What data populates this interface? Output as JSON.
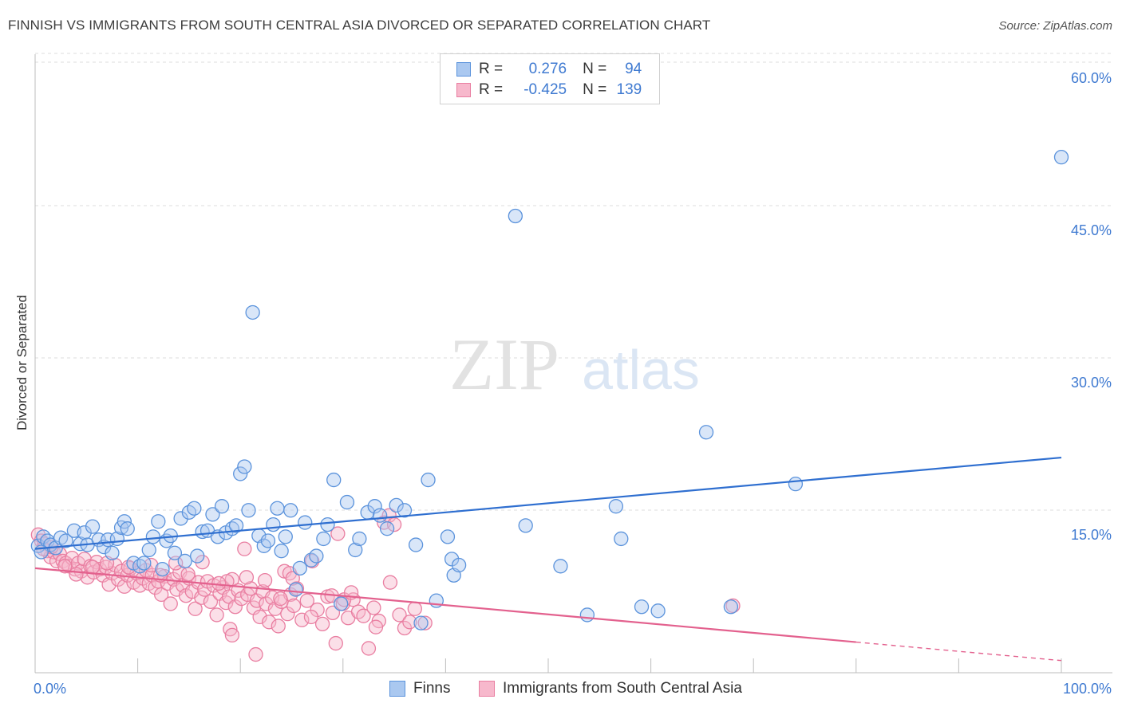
{
  "header": {
    "title": "FINNISH VS IMMIGRANTS FROM SOUTH CENTRAL ASIA DIVORCED OR SEPARATED CORRELATION CHART",
    "source": "Source: ZipAtlas.com"
  },
  "legend_top": {
    "rows": [
      {
        "r_label": "R =",
        "r_value": "0.276",
        "n_label": "N =",
        "n_value": "94"
      },
      {
        "r_label": "R =",
        "r_value": "-0.425",
        "n_label": "N =",
        "n_value": "139"
      }
    ]
  },
  "watermark": {
    "zip": "ZIP",
    "atlas": "atlas"
  },
  "colors": {
    "finns_fill": "#aac8f0",
    "finns_stroke": "#5b93dc",
    "finns_line": "#2f6fd0",
    "imm_fill": "#f7b8cc",
    "imm_stroke": "#e97ea1",
    "imm_line": "#e3618e",
    "tick_text": "#3f7ad1",
    "grid": "#dddddd"
  },
  "chart_data": {
    "type": "scatter",
    "title": "FINNISH VS IMMIGRANTS FROM SOUTH CENTRAL ASIA DIVORCED OR SEPARATED CORRELATION CHART",
    "xlabel": "",
    "ylabel": "Divorced or Separated",
    "xlim": [
      0,
      100
    ],
    "ylim": [
      0,
      60
    ],
    "x_tick_labels": [
      "0.0%",
      "100.0%"
    ],
    "y_ticks": [
      15,
      30,
      45,
      60
    ],
    "y_tick_labels": [
      "15.0%",
      "30.0%",
      "45.0%",
      "60.0%"
    ],
    "grid": true,
    "legend_position": "bottom",
    "series": [
      {
        "name": "Finns",
        "r": 0.276,
        "n": 94,
        "trend": {
          "x0": 0,
          "y0": 12.2,
          "x1": 100,
          "y1": 21.2,
          "dashed_from": null
        },
        "points": [
          [
            0.3,
            12.5
          ],
          [
            0.8,
            13.4
          ],
          [
            1.2,
            13.0
          ],
          [
            1.5,
            12.6
          ],
          [
            2.0,
            12.3
          ],
          [
            2.5,
            13.3
          ],
          [
            3.0,
            13.0
          ],
          [
            3.8,
            14.0
          ],
          [
            4.4,
            12.7
          ],
          [
            4.8,
            13.8
          ],
          [
            5.1,
            12.6
          ],
          [
            5.6,
            14.4
          ],
          [
            6.2,
            13.1
          ],
          [
            6.7,
            12.4
          ],
          [
            7.1,
            13.1
          ],
          [
            7.5,
            11.8
          ],
          [
            8.0,
            13.2
          ],
          [
            8.4,
            14.3
          ],
          [
            8.7,
            14.9
          ],
          [
            9.0,
            14.2
          ],
          [
            9.6,
            10.8
          ],
          [
            10.2,
            10.5
          ],
          [
            10.6,
            10.8
          ],
          [
            11.1,
            12.1
          ],
          [
            11.5,
            13.4
          ],
          [
            12.0,
            14.9
          ],
          [
            12.4,
            10.2
          ],
          [
            12.8,
            13.0
          ],
          [
            13.2,
            13.5
          ],
          [
            13.6,
            11.8
          ],
          [
            14.2,
            15.2
          ],
          [
            14.6,
            11.0
          ],
          [
            15.0,
            15.8
          ],
          [
            15.5,
            16.2
          ],
          [
            15.8,
            11.5
          ],
          [
            16.3,
            13.9
          ],
          [
            16.8,
            14.0
          ],
          [
            17.3,
            15.6
          ],
          [
            17.8,
            13.4
          ],
          [
            18.2,
            16.4
          ],
          [
            18.6,
            13.8
          ],
          [
            19.2,
            14.2
          ],
          [
            19.6,
            14.5
          ],
          [
            20.0,
            19.6
          ],
          [
            20.4,
            20.3
          ],
          [
            20.8,
            16.0
          ],
          [
            21.2,
            35.5
          ],
          [
            21.8,
            13.5
          ],
          [
            22.3,
            12.5
          ],
          [
            22.7,
            13.0
          ],
          [
            23.2,
            14.6
          ],
          [
            23.6,
            16.2
          ],
          [
            24.0,
            12.0
          ],
          [
            24.4,
            13.4
          ],
          [
            24.9,
            16.0
          ],
          [
            25.4,
            8.2
          ],
          [
            25.8,
            10.3
          ],
          [
            26.3,
            14.8
          ],
          [
            26.9,
            11.1
          ],
          [
            27.4,
            11.5
          ],
          [
            28.1,
            13.2
          ],
          [
            28.5,
            14.6
          ],
          [
            29.1,
            19.0
          ],
          [
            29.8,
            6.8
          ],
          [
            30.4,
            16.8
          ],
          [
            31.2,
            12.1
          ],
          [
            31.6,
            13.2
          ],
          [
            32.4,
            15.8
          ],
          [
            33.1,
            16.4
          ],
          [
            33.6,
            15.5
          ],
          [
            34.3,
            14.2
          ],
          [
            35.2,
            16.5
          ],
          [
            36.0,
            16.0
          ],
          [
            37.1,
            12.6
          ],
          [
            37.6,
            4.9
          ],
          [
            38.3,
            19.0
          ],
          [
            39.1,
            7.1
          ],
          [
            40.2,
            13.4
          ],
          [
            40.6,
            11.2
          ],
          [
            40.8,
            9.6
          ],
          [
            41.3,
            10.6
          ],
          [
            46.8,
            45.0
          ],
          [
            47.8,
            14.5
          ],
          [
            51.2,
            10.5
          ],
          [
            53.8,
            5.7
          ],
          [
            56.6,
            16.4
          ],
          [
            57.1,
            13.2
          ],
          [
            59.1,
            6.5
          ],
          [
            60.7,
            6.1
          ],
          [
            65.4,
            23.7
          ],
          [
            67.8,
            6.5
          ],
          [
            74.1,
            18.6
          ],
          [
            100.0,
            50.8
          ],
          [
            0.6,
            11.9
          ]
        ]
      },
      {
        "name": "Immigrants from South Central Asia",
        "r": -0.425,
        "n": 139,
        "trend": {
          "x0": 0,
          "y0": 10.3,
          "x1": 100,
          "y1": 1.2,
          "dashed_from": 80
        },
        "points": [
          [
            0.3,
            13.6
          ],
          [
            0.6,
            13.0
          ],
          [
            0.9,
            12.7
          ],
          [
            1.2,
            12.0
          ],
          [
            1.5,
            11.4
          ],
          [
            1.8,
            11.9
          ],
          [
            2.1,
            11.0
          ],
          [
            2.4,
            11.7
          ],
          [
            2.7,
            11.0
          ],
          [
            3.0,
            10.8
          ],
          [
            3.3,
            10.5
          ],
          [
            3.6,
            11.3
          ],
          [
            3.9,
            10.2
          ],
          [
            4.2,
            10.8
          ],
          [
            4.5,
            10.0
          ],
          [
            4.8,
            11.2
          ],
          [
            5.1,
            9.4
          ],
          [
            5.4,
            10.5
          ],
          [
            5.7,
            9.9
          ],
          [
            6.0,
            10.9
          ],
          [
            6.3,
            10.2
          ],
          [
            6.6,
            9.6
          ],
          [
            6.9,
            10.4
          ],
          [
            7.2,
            8.7
          ],
          [
            7.5,
            9.8
          ],
          [
            7.8,
            10.6
          ],
          [
            8.1,
            9.2
          ],
          [
            8.4,
            10.0
          ],
          [
            8.7,
            8.5
          ],
          [
            9.0,
            9.6
          ],
          [
            9.3,
            10.3
          ],
          [
            9.6,
            8.9
          ],
          [
            9.9,
            9.8
          ],
          [
            10.2,
            8.6
          ],
          [
            10.5,
            9.3
          ],
          [
            10.8,
            10.1
          ],
          [
            11.1,
            8.8
          ],
          [
            11.4,
            9.6
          ],
          [
            11.7,
            8.4
          ],
          [
            12.0,
            9.0
          ],
          [
            12.3,
            7.7
          ],
          [
            12.6,
            9.5
          ],
          [
            12.9,
            8.8
          ],
          [
            13.2,
            6.8
          ],
          [
            13.5,
            9.2
          ],
          [
            13.8,
            8.2
          ],
          [
            14.1,
            9.9
          ],
          [
            14.4,
            8.6
          ],
          [
            14.7,
            7.6
          ],
          [
            15.0,
            9.3
          ],
          [
            15.3,
            8.0
          ],
          [
            15.6,
            6.3
          ],
          [
            15.9,
            8.9
          ],
          [
            16.2,
            7.4
          ],
          [
            16.5,
            8.2
          ],
          [
            16.8,
            9.0
          ],
          [
            17.1,
            7.0
          ],
          [
            17.4,
            8.6
          ],
          [
            17.7,
            5.7
          ],
          [
            18.0,
            7.8
          ],
          [
            18.3,
            8.4
          ],
          [
            18.6,
            6.9
          ],
          [
            18.9,
            7.5
          ],
          [
            19.2,
            9.2
          ],
          [
            19.5,
            6.5
          ],
          [
            19.8,
            8.1
          ],
          [
            20.1,
            7.3
          ],
          [
            20.4,
            12.2
          ],
          [
            20.7,
            7.7
          ],
          [
            21.0,
            8.3
          ],
          [
            21.3,
            6.4
          ],
          [
            21.6,
            7.1
          ],
          [
            21.9,
            5.5
          ],
          [
            22.2,
            8.0
          ],
          [
            22.5,
            6.8
          ],
          [
            22.8,
            5.0
          ],
          [
            23.1,
            7.4
          ],
          [
            23.4,
            6.3
          ],
          [
            23.7,
            4.6
          ],
          [
            24.0,
            7.0
          ],
          [
            24.3,
            10.0
          ],
          [
            24.6,
            5.8
          ],
          [
            24.9,
            7.7
          ],
          [
            25.2,
            6.6
          ],
          [
            25.5,
            8.3
          ],
          [
            26.0,
            5.2
          ],
          [
            26.5,
            7.1
          ],
          [
            27.0,
            11.0
          ],
          [
            27.5,
            6.2
          ],
          [
            28.0,
            4.8
          ],
          [
            28.5,
            7.5
          ],
          [
            29.0,
            5.9
          ],
          [
            29.5,
            13.7
          ],
          [
            30.0,
            6.8
          ],
          [
            30.5,
            5.4
          ],
          [
            31.0,
            7.2
          ],
          [
            31.5,
            6.0
          ],
          [
            32.0,
            5.6
          ],
          [
            32.5,
            2.4
          ],
          [
            33.0,
            6.4
          ],
          [
            33.5,
            5.1
          ],
          [
            34.0,
            14.8
          ],
          [
            34.5,
            15.5
          ],
          [
            35.0,
            14.6
          ],
          [
            35.5,
            5.7
          ],
          [
            36.0,
            4.4
          ],
          [
            36.5,
            5.0
          ],
          [
            37.0,
            6.3
          ],
          [
            38.0,
            4.9
          ],
          [
            19.0,
            4.3
          ],
          [
            19.2,
            3.7
          ],
          [
            21.5,
            1.8
          ],
          [
            29.3,
            2.9
          ],
          [
            30.1,
            7.2
          ],
          [
            33.2,
            4.5
          ],
          [
            34.6,
            8.9
          ],
          [
            16.3,
            10.9
          ],
          [
            20.6,
            9.4
          ],
          [
            18.7,
            9.0
          ],
          [
            24.8,
            9.8
          ],
          [
            25.1,
            9.3
          ],
          [
            13.7,
            10.8
          ],
          [
            11.3,
            10.6
          ],
          [
            9.1,
            10.4
          ],
          [
            7.0,
            10.8
          ],
          [
            5.6,
            10.4
          ],
          [
            4.0,
            9.7
          ],
          [
            2.9,
            10.5
          ],
          [
            1.6,
            12.4
          ],
          [
            0.8,
            12.2
          ],
          [
            68.0,
            6.6
          ],
          [
            23.9,
            7.3
          ],
          [
            26.9,
            5.5
          ],
          [
            28.9,
            7.6
          ],
          [
            30.8,
            7.9
          ],
          [
            12.2,
            9.6
          ],
          [
            14.9,
            9.7
          ],
          [
            17.9,
            8.8
          ],
          [
            22.4,
            9.1
          ]
        ]
      }
    ]
  },
  "bottom_legend": {
    "items": [
      {
        "label": "Finns"
      },
      {
        "label": "Immigrants from South Central Asia"
      }
    ]
  }
}
